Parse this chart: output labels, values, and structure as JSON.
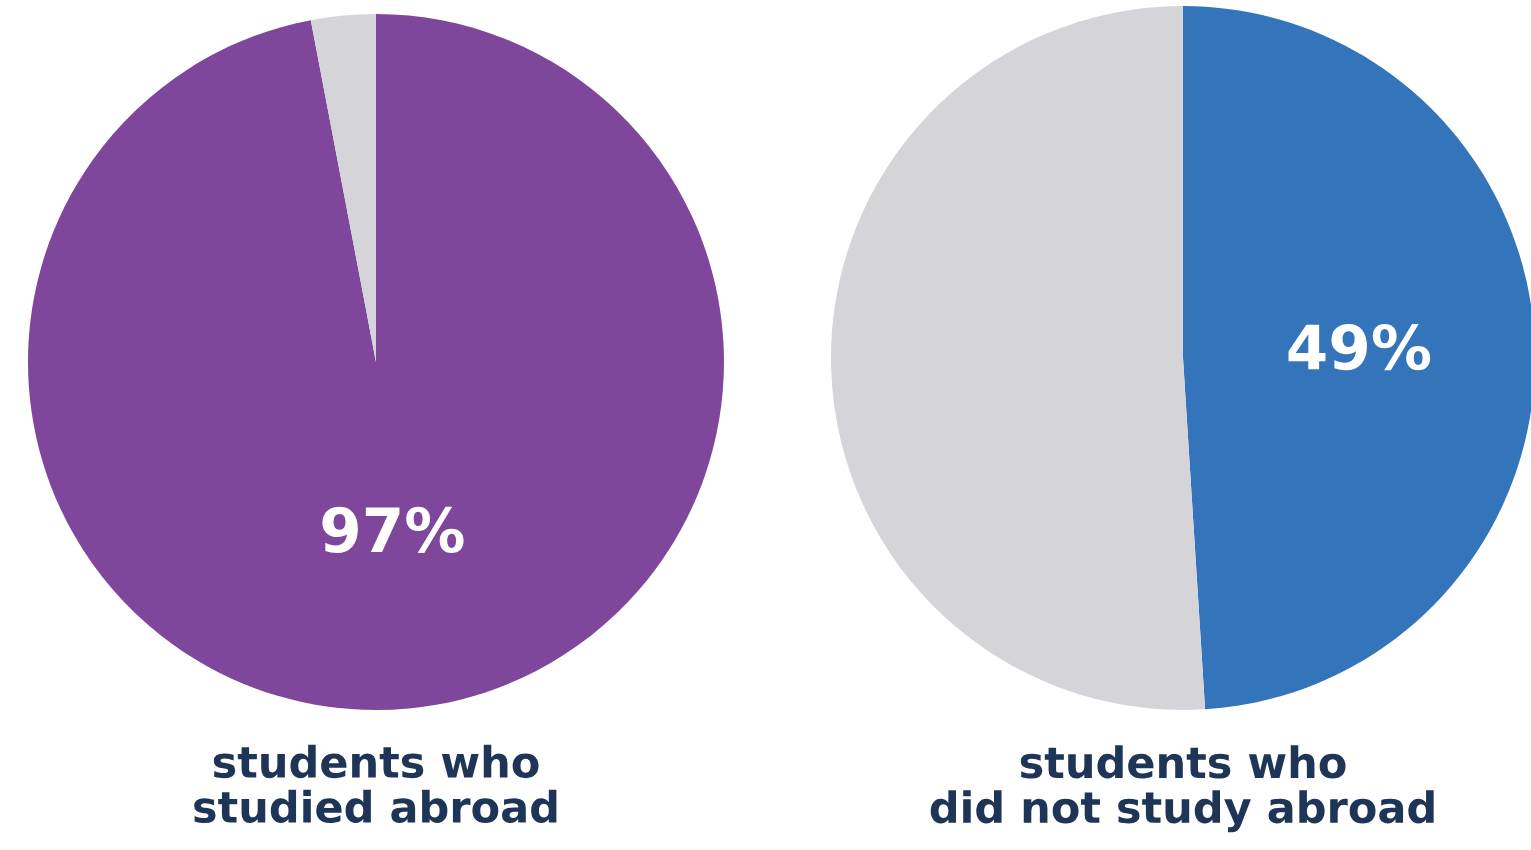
{
  "chart_data": [
    {
      "type": "pie",
      "title": "students who\nstudied abroad",
      "categories": [
        null,
        null
      ],
      "values": [
        97,
        3
      ],
      "colors": [
        "#7e479c",
        "#d5d5d9"
      ],
      "value_labels": [
        "97%",
        null
      ]
    },
    {
      "type": "pie",
      "title": "students who\ndid not study abroad",
      "categories": [
        null,
        null
      ],
      "values": [
        49,
        51
      ],
      "colors": [
        "#3474ba",
        "#d5d5d9"
      ],
      "value_labels": [
        "49%",
        null
      ]
    }
  ]
}
